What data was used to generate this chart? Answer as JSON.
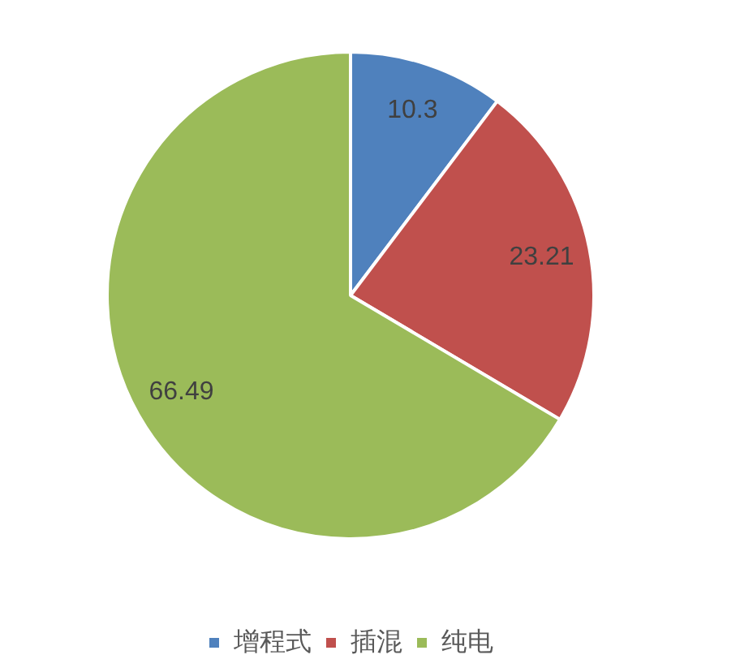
{
  "chart_data": {
    "type": "pie",
    "categories": [
      "增程式",
      "插混",
      "纯电"
    ],
    "values": [
      10.3,
      23.21,
      66.49
    ],
    "colors": [
      "#4f81bd",
      "#c0504d",
      "#9bbb59"
    ],
    "data_labels": true,
    "legend": "bottom"
  }
}
